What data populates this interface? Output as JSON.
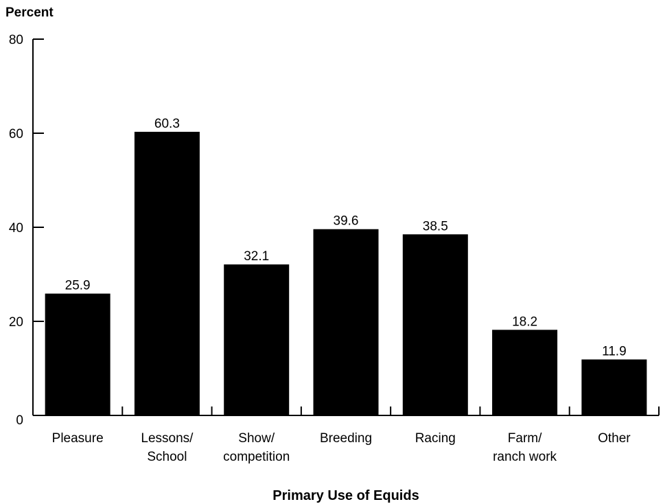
{
  "chart_data": {
    "type": "bar",
    "title": "",
    "ylabel": "Percent",
    "xlabel": "Primary Use of Equids",
    "ylim": [
      0,
      80
    ],
    "yticks": [
      0,
      20,
      40,
      60,
      80
    ],
    "categories": [
      [
        "Pleasure"
      ],
      [
        "Lessons/",
        "School"
      ],
      [
        "Show/",
        "competition"
      ],
      [
        "Breeding"
      ],
      [
        "Racing"
      ],
      [
        "Farm/",
        "ranch work"
      ],
      [
        "Other"
      ]
    ],
    "values": [
      25.9,
      60.3,
      32.1,
      39.6,
      38.5,
      18.2,
      11.9
    ],
    "value_labels": [
      "25.9",
      "60.3",
      "32.1",
      "39.6",
      "38.5",
      "18.2",
      "11.9"
    ],
    "bar_color": "#000000",
    "grid": false,
    "legend": "none"
  }
}
